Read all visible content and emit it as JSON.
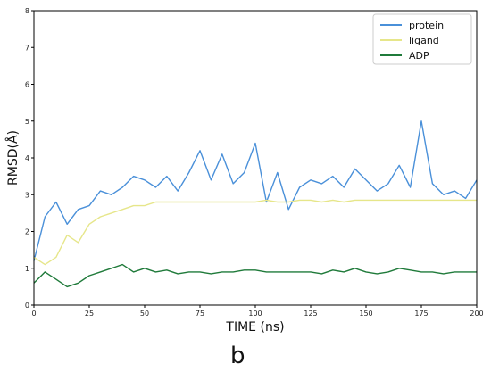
{
  "chart_data": {
    "type": "line",
    "panel_label": "b",
    "xlabel": "TIME (ns)",
    "ylabel": "RMSD(Å)",
    "xlim": [
      0,
      200
    ],
    "ylim": [
      0,
      8
    ],
    "x_ticks": [
      0,
      25,
      50,
      75,
      100,
      125,
      150,
      175,
      200
    ],
    "y_ticks": [
      0,
      1,
      2,
      3,
      4,
      5,
      6,
      7,
      8
    ],
    "grid": false,
    "legend_position": "top-right",
    "x": [
      0,
      5,
      10,
      15,
      20,
      25,
      30,
      35,
      40,
      45,
      50,
      55,
      60,
      65,
      70,
      75,
      80,
      85,
      90,
      95,
      100,
      105,
      110,
      115,
      120,
      125,
      130,
      135,
      140,
      145,
      150,
      155,
      160,
      165,
      170,
      175,
      180,
      185,
      190,
      195,
      200
    ],
    "series": [
      {
        "name": "protein",
        "color": "#4a90d9",
        "values": [
          1.2,
          2.4,
          2.8,
          2.2,
          2.6,
          2.7,
          3.1,
          3.0,
          3.2,
          3.5,
          3.4,
          3.2,
          3.5,
          3.1,
          3.6,
          4.2,
          3.4,
          4.1,
          3.3,
          3.6,
          4.4,
          2.8,
          3.6,
          2.6,
          3.2,
          3.4,
          3.3,
          3.5,
          3.2,
          3.7,
          3.4,
          3.1,
          3.3,
          3.8,
          3.2,
          5.0,
          3.3,
          3.0,
          3.1,
          2.9,
          3.4
        ]
      },
      {
        "name": "ligand",
        "color": "#e6e68a",
        "values": [
          1.3,
          1.1,
          1.3,
          1.9,
          1.7,
          2.2,
          2.4,
          2.5,
          2.6,
          2.7,
          2.7,
          2.8,
          2.8,
          2.8,
          2.8,
          2.8,
          2.8,
          2.8,
          2.8,
          2.8,
          2.8,
          2.85,
          2.8,
          2.8,
          2.85,
          2.85,
          2.8,
          2.85,
          2.8,
          2.85,
          2.85,
          2.85,
          2.85,
          2.85,
          2.85,
          2.85,
          2.85,
          2.85,
          2.85,
          2.85,
          2.85
        ]
      },
      {
        "name": "ADP",
        "color": "#1f7a3a",
        "values": [
          0.6,
          0.9,
          0.7,
          0.5,
          0.6,
          0.8,
          0.9,
          1.0,
          1.1,
          0.9,
          1.0,
          0.9,
          0.95,
          0.85,
          0.9,
          0.9,
          0.85,
          0.9,
          0.9,
          0.95,
          0.95,
          0.9,
          0.9,
          0.9,
          0.9,
          0.9,
          0.85,
          0.95,
          0.9,
          1.0,
          0.9,
          0.85,
          0.9,
          1.0,
          0.95,
          0.9,
          0.9,
          0.85,
          0.9,
          0.9,
          0.9
        ]
      }
    ]
  }
}
